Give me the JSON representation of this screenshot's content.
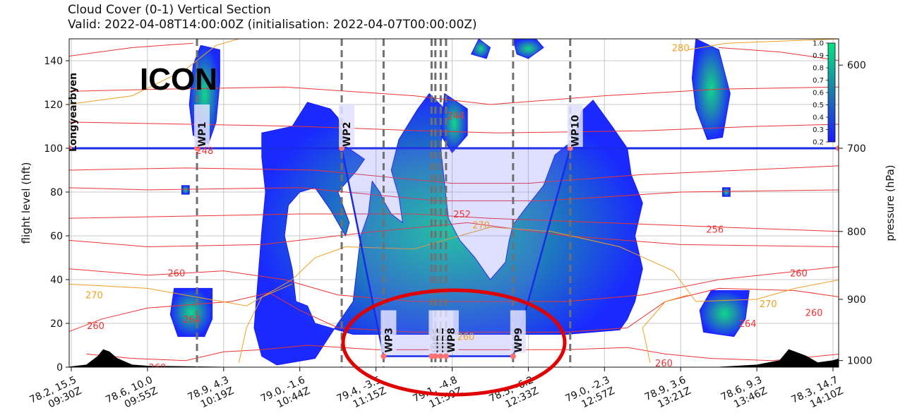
{
  "header": {
    "title_line1": "Cloud Cover (0-1) Vertical Section",
    "title_line2": "Valid: 2022-04-08T14:00:00Z (initialisation: 2022-04-07T00:00:00Z)"
  },
  "model_label": "ICON",
  "origin_label": "Longyearbyen",
  "chart_data": {
    "type": "heatmap",
    "title": "Cloud Cover (0-1) Vertical Section",
    "subtitle": "Valid: 2022-04-08T14:00:00Z (initialisation: 2022-04-07T00:00:00Z)",
    "ylabel": "flight level (hft)",
    "ylabel_right": "pressure (hPa)",
    "ylim": [
      0,
      150
    ],
    "yticks": [
      0,
      20,
      40,
      60,
      80,
      100,
      120,
      140
    ],
    "pressure_ticks": [
      {
        "label": "600",
        "fl": 138
      },
      {
        "label": "700",
        "fl": 100
      },
      {
        "label": "800",
        "fl": 62
      },
      {
        "label": "900",
        "fl": 31
      },
      {
        "label": "1000",
        "fl": 3
      }
    ],
    "x_ticks": [
      {
        "pos": 0,
        "line1": "78.2, 15.5",
        "line2": "09:30Z"
      },
      {
        "pos": 1,
        "line1": "78.6, 10.0",
        "line2": "09:55Z"
      },
      {
        "pos": 2,
        "line1": "78.9, 4.3",
        "line2": "10:19Z"
      },
      {
        "pos": 3,
        "line1": "79.0, -1.6",
        "line2": "10:44Z"
      },
      {
        "pos": 4,
        "line1": "79.4, -3.5",
        "line2": "11:15Z"
      },
      {
        "pos": 5,
        "line1": "79.1, -4.8",
        "line2": "11:59Z"
      },
      {
        "pos": 6,
        "line1": "78.5, -6.2",
        "line2": "12:33Z"
      },
      {
        "pos": 7,
        "line1": "79.0, -2.3",
        "line2": "12:57Z"
      },
      {
        "pos": 8,
        "line1": "78.9, 3.6",
        "line2": "13:21Z"
      },
      {
        "pos": 9,
        "line1": "78.6, 9.3",
        "line2": "13:46Z"
      },
      {
        "pos": 10,
        "line1": "78.3, 14.7",
        "line2": "14:10Z"
      }
    ],
    "colorbar": {
      "ticks": [
        "0.2",
        "0.3",
        "0.4",
        "0.5",
        "0.6",
        "0.7",
        "0.8",
        "0.9",
        "1.0"
      ],
      "low_color": "#1a1aff",
      "mid_color": "#1f6fb4",
      "high_color": "#00e680"
    },
    "waypoints": [
      {
        "name": "WP1",
        "pos": 1.65,
        "fl": 100
      },
      {
        "name": "WP2",
        "pos": 3.55,
        "fl": 100
      },
      {
        "name": "WP3",
        "pos": 4.1,
        "fl": 5
      },
      {
        "name": "WP5",
        "pos": 4.73,
        "fl": 5
      },
      {
        "name": "WP6",
        "pos": 4.78,
        "fl": 5
      },
      {
        "name": "WP7",
        "pos": 4.85,
        "fl": 5
      },
      {
        "name": "WP8",
        "pos": 4.92,
        "fl": 5
      },
      {
        "name": "WP9",
        "pos": 5.8,
        "fl": 5
      },
      {
        "name": "WP10",
        "pos": 6.55,
        "fl": 100
      }
    ],
    "flight_level_line": 100,
    "temperature_contour_labels": [
      {
        "text": "248",
        "pos": 1.75,
        "fl": 99,
        "color": "#ee3333"
      },
      {
        "text": "244",
        "pos": 5.05,
        "fl": 115,
        "color": "#ee3333"
      },
      {
        "text": "252",
        "pos": 5.13,
        "fl": 70,
        "color": "#ee3333"
      },
      {
        "text": "270",
        "pos": 5.38,
        "fl": 65,
        "color": "#f0a020"
      },
      {
        "text": "256",
        "pos": 8.45,
        "fl": 63,
        "color": "#ee3333"
      },
      {
        "text": "260",
        "pos": 1.38,
        "fl": 43,
        "color": "#ee3333"
      },
      {
        "text": "270",
        "pos": 0.3,
        "fl": 33,
        "color": "#f0a020"
      },
      {
        "text": "260",
        "pos": 0.32,
        "fl": 19,
        "color": "#ee3333"
      },
      {
        "text": "264",
        "pos": 1.58,
        "fl": 22,
        "color": "#ee3333"
      },
      {
        "text": "260",
        "pos": 1.13,
        "fl": 0,
        "color": "#ee3333"
      },
      {
        "text": "260",
        "pos": 5.18,
        "fl": 14,
        "color": "#f0a020"
      },
      {
        "text": "260",
        "pos": 7.78,
        "fl": 2,
        "color": "#ee3333"
      },
      {
        "text": "264",
        "pos": 8.88,
        "fl": 20,
        "color": "#ee3333"
      },
      {
        "text": "270",
        "pos": 9.15,
        "fl": 29,
        "color": "#f0a020"
      },
      {
        "text": "260",
        "pos": 9.55,
        "fl": 43,
        "color": "#ee3333"
      },
      {
        "text": "260",
        "pos": 9.75,
        "fl": 25,
        "color": "#ee3333"
      },
      {
        "text": "280",
        "pos": 8.0,
        "fl": 146,
        "color": "#f0a020"
      }
    ]
  }
}
